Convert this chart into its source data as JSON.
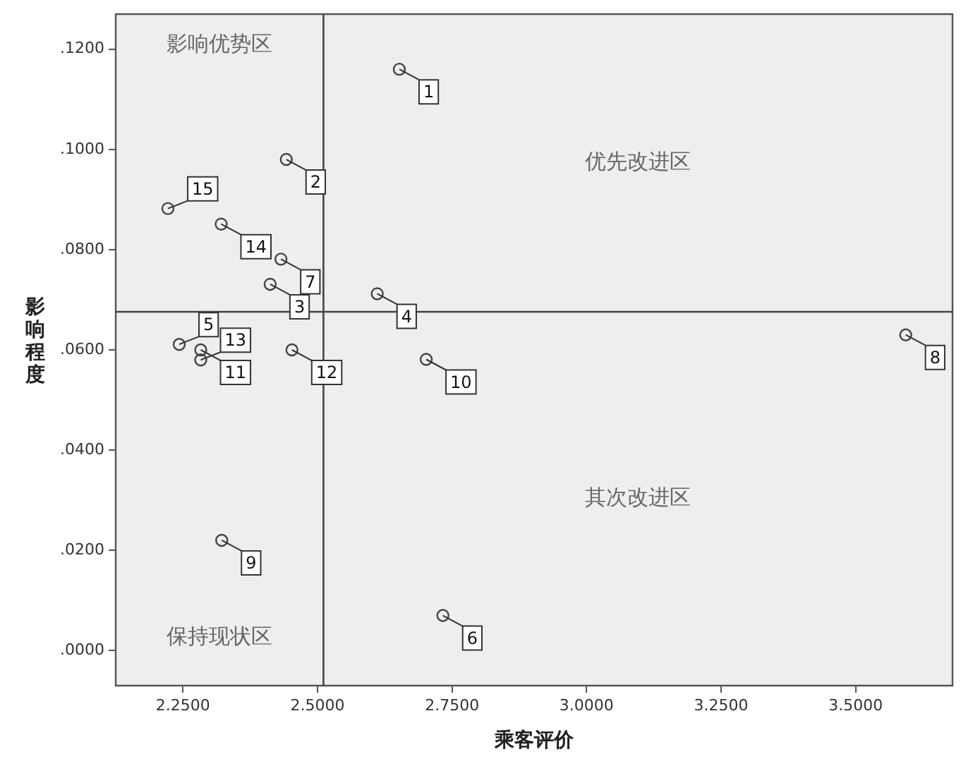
{
  "chart_data": {
    "type": "scatter",
    "xlabel": "乘客评价",
    "ylabel": "影响程度",
    "x": [
      2.652,
      2.442,
      2.412,
      2.611,
      2.243,
      2.733,
      2.432,
      3.593,
      2.322,
      2.702,
      2.283,
      2.4525,
      2.283,
      2.321,
      2.222
    ],
    "values": [
      0.116,
      0.098,
      0.0731,
      0.0712,
      0.0611,
      0.007,
      0.0781,
      0.063,
      0.022,
      0.0581,
      0.06,
      0.06,
      0.058,
      0.0851,
      0.0882
    ],
    "color": "#444444",
    "marker": "circle",
    "legend": false,
    "xlim": [
      2.125,
      3.68
    ],
    "ylim": [
      -0.007,
      0.127
    ],
    "xticks": [
      {
        "value": 2.25,
        "label": "2.2500"
      },
      {
        "value": 2.5,
        "label": "2.5000"
      },
      {
        "value": 2.75,
        "label": "2.7500"
      },
      {
        "value": 3.0,
        "label": "3.0000"
      },
      {
        "value": 3.25,
        "label": "3.2500"
      },
      {
        "value": 3.5,
        "label": "3.5000"
      }
    ],
    "yticks": [
      {
        "value": 0,
        "label": ".0000"
      },
      {
        "value": 0.02,
        "label": ".0200"
      },
      {
        "value": 0.04,
        "label": ".0400"
      },
      {
        "value": 0.06,
        "label": ".0600"
      },
      {
        "value": 0.08,
        "label": ".0800"
      },
      {
        "value": 0.1,
        "label": ".1000"
      },
      {
        "value": 0.12,
        "label": ".1200"
      }
    ],
    "ref_lines": [
      {
        "axis": "x",
        "value": 2.511,
        "color": "#444444"
      },
      {
        "axis": "y",
        "value": 0.0676,
        "color": "#444444"
      }
    ],
    "annotations": [
      "影响优势区",
      "优先改进区",
      "其次改进区",
      "保持现状区",
      {
        "text": "1",
        "x": 2.652,
        "y": 0.116
      },
      {
        "text": "2",
        "x": 2.442,
        "y": 0.098
      },
      {
        "text": "3",
        "x": 2.412,
        "y": 0.0731
      },
      {
        "text": "4",
        "x": 2.611,
        "y": 0.0712
      },
      {
        "text": "5",
        "x": 2.243,
        "y": 0.0611
      },
      {
        "text": "6",
        "x": 2.733,
        "y": 0.007
      },
      {
        "text": "7",
        "x": 2.432,
        "y": 0.0781
      },
      {
        "text": "8",
        "x": 3.593,
        "y": 0.063
      },
      {
        "text": "9",
        "x": 2.322,
        "y": 0.022
      },
      {
        "text": "10",
        "x": 2.702,
        "y": 0.0581
      },
      {
        "text": "11",
        "x": 2.283,
        "y": 0.06
      },
      {
        "text": "12",
        "x": 2.4525,
        "y": 0.06
      },
      {
        "text": "13",
        "x": 2.283,
        "y": 0.058
      },
      {
        "text": "14",
        "x": 2.321,
        "y": 0.0851
      },
      {
        "text": "15",
        "x": 2.222,
        "y": 0.0882
      }
    ]
  }
}
